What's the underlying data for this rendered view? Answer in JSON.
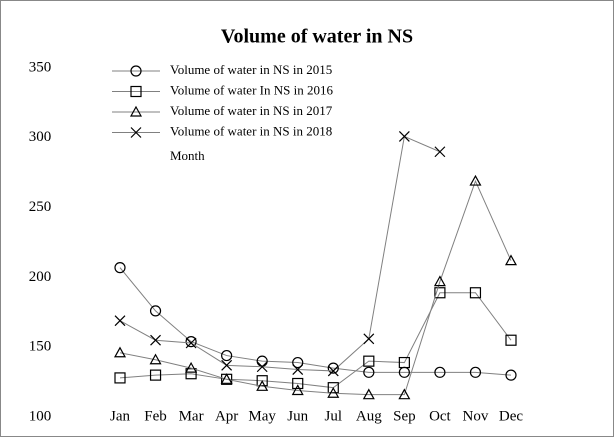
{
  "chart_data": {
    "type": "line",
    "title": "Volume of water in NS",
    "x_label": "Month",
    "categories": [
      "Jan",
      "Feb",
      "Mar",
      "Apr",
      "May",
      "Jun",
      "Jul",
      "Aug",
      "Sep",
      "Oct",
      "Nov",
      "Dec"
    ],
    "series": [
      {
        "name": "Volume of water in NS in 2015",
        "marker": "circle",
        "color": "#808080",
        "values": [
          207,
          176,
          154,
          144,
          140,
          139,
          135,
          132,
          132,
          132,
          132,
          130
        ]
      },
      {
        "name": "Volume of water In NS in 2016",
        "marker": "square",
        "color": "#808080",
        "values": [
          128,
          130,
          131,
          127,
          126,
          124,
          121,
          140,
          139,
          189,
          189,
          155
        ]
      },
      {
        "name": "Volume of water in NS in 2017",
        "marker": "triangle",
        "color": "#808080",
        "values": [
          146,
          141,
          135,
          127,
          122,
          119,
          117,
          116,
          116,
          197,
          269,
          212
        ]
      },
      {
        "name": "Volume of water in NS in 2018",
        "marker": "cross",
        "color": "#808080",
        "values": [
          169,
          155,
          153,
          137,
          136,
          134,
          133,
          156,
          301,
          290,
          null,
          null
        ]
      }
    ],
    "ylim": [
      100,
      350
    ],
    "yticks": [
      100,
      150,
      200,
      250,
      300,
      350
    ],
    "grid": false,
    "legend": "top-left"
  }
}
